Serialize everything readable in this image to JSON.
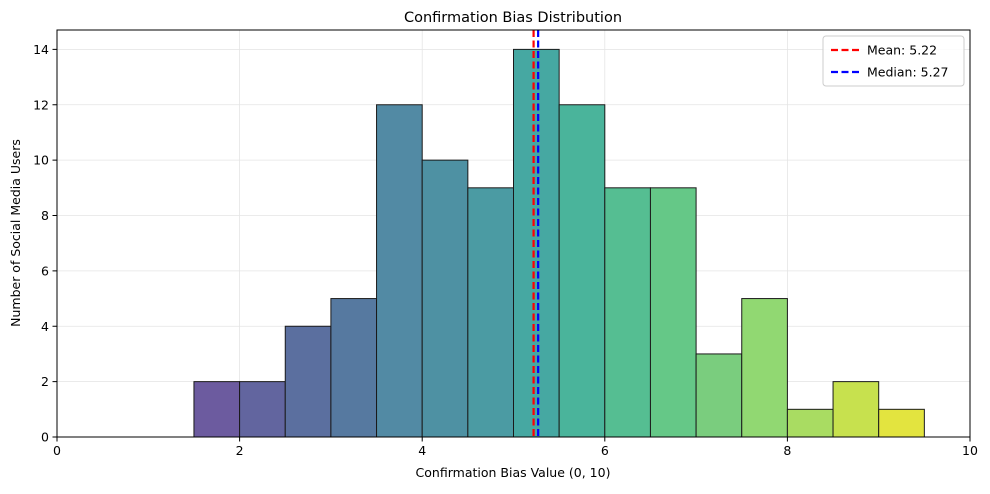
{
  "chart_data": {
    "type": "bar",
    "title": "Confirmation Bias Distribution",
    "xlabel": "Confirmation Bias Value (0, 10)",
    "ylabel": "Number of Social Media Users",
    "xlim": [
      0,
      10
    ],
    "ylim": [
      0,
      14.7
    ],
    "xticks": [
      0,
      2,
      4,
      6,
      8,
      10
    ],
    "yticks": [
      0,
      2,
      4,
      6,
      8,
      10,
      12,
      14
    ],
    "grid": true,
    "bin_width": 0.5,
    "bins": [
      {
        "x0": 1.5,
        "x1": 2.0,
        "count": 2,
        "color": "#6c5b9f"
      },
      {
        "x0": 2.0,
        "x1": 2.5,
        "count": 2,
        "color": "#62659f"
      },
      {
        "x0": 2.5,
        "x1": 3.0,
        "count": 4,
        "color": "#5b6f9f"
      },
      {
        "x0": 3.0,
        "x1": 3.5,
        "count": 5,
        "color": "#5679a0"
      },
      {
        "x0": 3.5,
        "x1": 4.0,
        "count": 12,
        "color": "#528aa4"
      },
      {
        "x0": 4.0,
        "x1": 4.5,
        "count": 10,
        "color": "#4e91a3"
      },
      {
        "x0": 4.5,
        "x1": 5.0,
        "count": 9,
        "color": "#4b9ba3"
      },
      {
        "x0": 5.0,
        "x1": 5.5,
        "count": 14,
        "color": "#46a8a2"
      },
      {
        "x0": 5.5,
        "x1": 6.0,
        "count": 12,
        "color": "#4ab49b"
      },
      {
        "x0": 6.0,
        "x1": 6.5,
        "count": 9,
        "color": "#55be92"
      },
      {
        "x0": 6.5,
        "x1": 7.0,
        "count": 9,
        "color": "#65c887"
      },
      {
        "x0": 7.0,
        "x1": 7.5,
        "count": 3,
        "color": "#7acd7e"
      },
      {
        "x0": 7.5,
        "x1": 8.0,
        "count": 5,
        "color": "#91d872"
      },
      {
        "x0": 8.0,
        "x1": 8.5,
        "count": 1,
        "color": "#a9dc62"
      },
      {
        "x0": 8.5,
        "x1": 9.0,
        "count": 2,
        "color": "#c7e14e"
      },
      {
        "x0": 9.0,
        "x1": 9.5,
        "count": 1,
        "color": "#e3e43f"
      }
    ],
    "reference_lines": [
      {
        "name": "Mean: 5.22",
        "value": 5.22,
        "color": "#ff0000"
      },
      {
        "name": "Median: 5.27",
        "value": 5.27,
        "color": "#0000ff"
      }
    ],
    "legend_position": "top-right"
  }
}
